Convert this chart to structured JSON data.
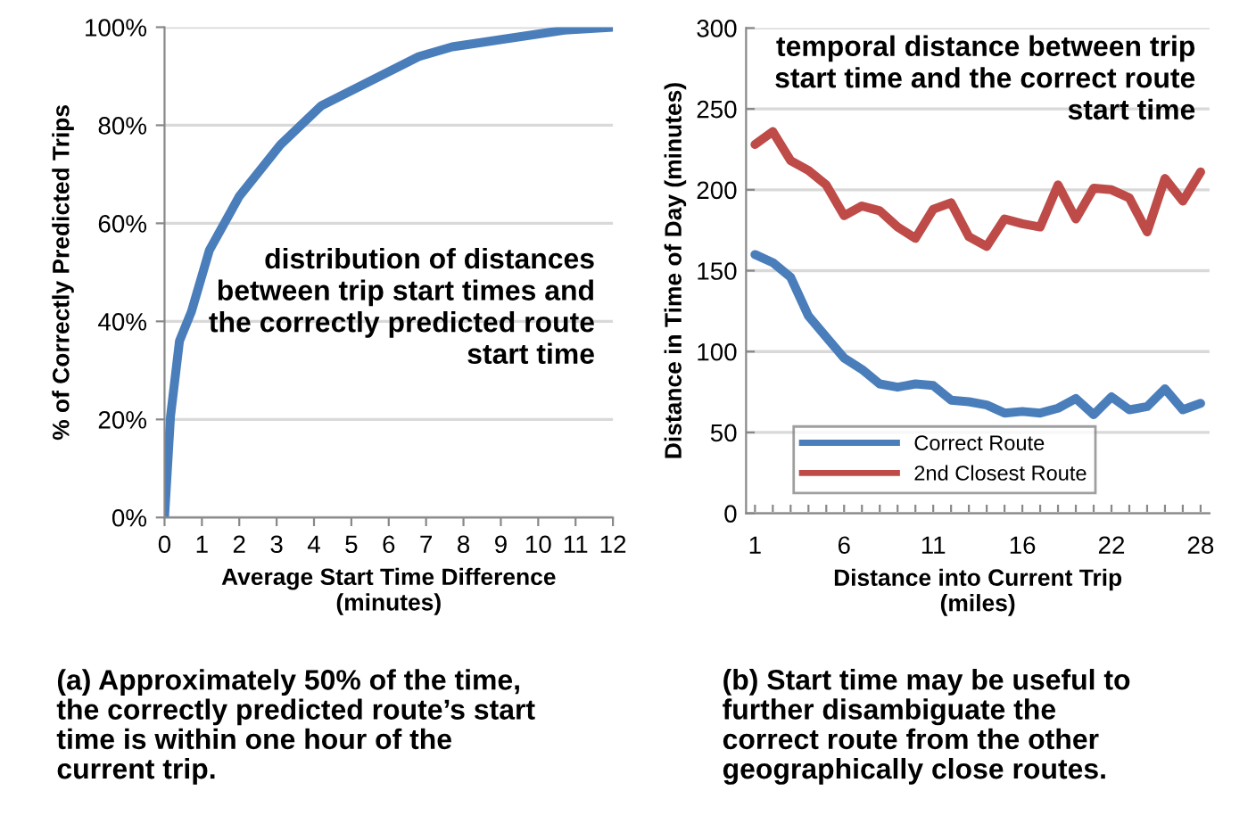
{
  "chart_data": [
    {
      "type": "line",
      "xlabel": "Average Start Time Difference\n(minutes)",
      "ylabel": "% of Correctly Predicted Trips",
      "x": [
        0,
        0.16,
        0.4,
        0.72,
        1.2,
        2,
        3.1,
        4.2,
        5.5,
        6.8,
        7.7,
        9.1,
        10.7,
        12
      ],
      "series": [
        {
          "color": "#4a7ebb",
          "values": [
            0,
            20.6,
            36,
            42,
            54.5,
            65.5,
            76,
            84,
            89,
            94,
            96,
            97.6,
            99.4,
            100
          ]
        }
      ],
      "xlim": [
        0,
        12
      ],
      "xticks": [
        0,
        1,
        2,
        3,
        4,
        5,
        6,
        7,
        8,
        9,
        10,
        11,
        12
      ],
      "ylim": [
        0,
        100
      ],
      "yticks": [
        {
          "value": 0,
          "label": "0%"
        },
        {
          "value": 20,
          "label": "20%"
        },
        {
          "value": 40,
          "label": "40%"
        },
        {
          "value": 60,
          "label": "60%"
        },
        {
          "value": 80,
          "label": "80%"
        },
        {
          "value": 100,
          "label": "100%"
        }
      ],
      "grid": "y",
      "marker": "none",
      "line_style": "solid",
      "annotations": [
        "distribution of distances\nbetween trip start times and\nthe correctly predicted route\nstart time",
        "(a) Approximately 50% of the time,\nthe correctly predicted route’s start\ntime is within one hour of the\ncurrent trip."
      ]
    },
    {
      "type": "line",
      "xlabel": "Distance into Current Trip\n(miles)",
      "ylabel": "Distance in Time of Day (minutes)",
      "categories": [
        "1",
        null,
        null,
        null,
        null,
        "6",
        null,
        null,
        null,
        null,
        "11",
        null,
        null,
        null,
        null,
        "16",
        null,
        null,
        null,
        null,
        "22",
        null,
        null,
        null,
        null,
        "28"
      ],
      "series": [
        {
          "name": "Correct Route",
          "color": "#4a7ebb",
          "values": [
            160,
            155,
            146,
            122,
            109,
            96,
            89,
            80,
            78,
            80,
            79,
            70,
            69,
            67,
            62,
            63,
            62,
            65,
            71,
            61,
            72,
            64,
            66,
            77,
            64,
            68
          ]
        },
        {
          "name": "2nd Closest Route",
          "color": "#be4b48",
          "values": [
            228,
            236,
            218,
            212,
            203,
            184,
            190,
            187,
            177,
            170,
            188,
            192,
            171,
            165,
            182,
            179,
            177,
            203,
            182,
            201,
            200,
            195,
            174,
            207,
            193,
            211
          ]
        }
      ],
      "ylim": [
        0,
        300
      ],
      "yticks": [
        0,
        50,
        100,
        150,
        200,
        250,
        300
      ],
      "grid": "y",
      "legend": "bottom left",
      "marker": "none",
      "line_style": "solid",
      "annotations": [
        "temporal distance between trip\nstart time and the correct route\nstart time",
        "(b) Start time may be useful to\nfurther disambiguate the\ncorrect route from the other\ngeographically close routes."
      ]
    }
  ]
}
